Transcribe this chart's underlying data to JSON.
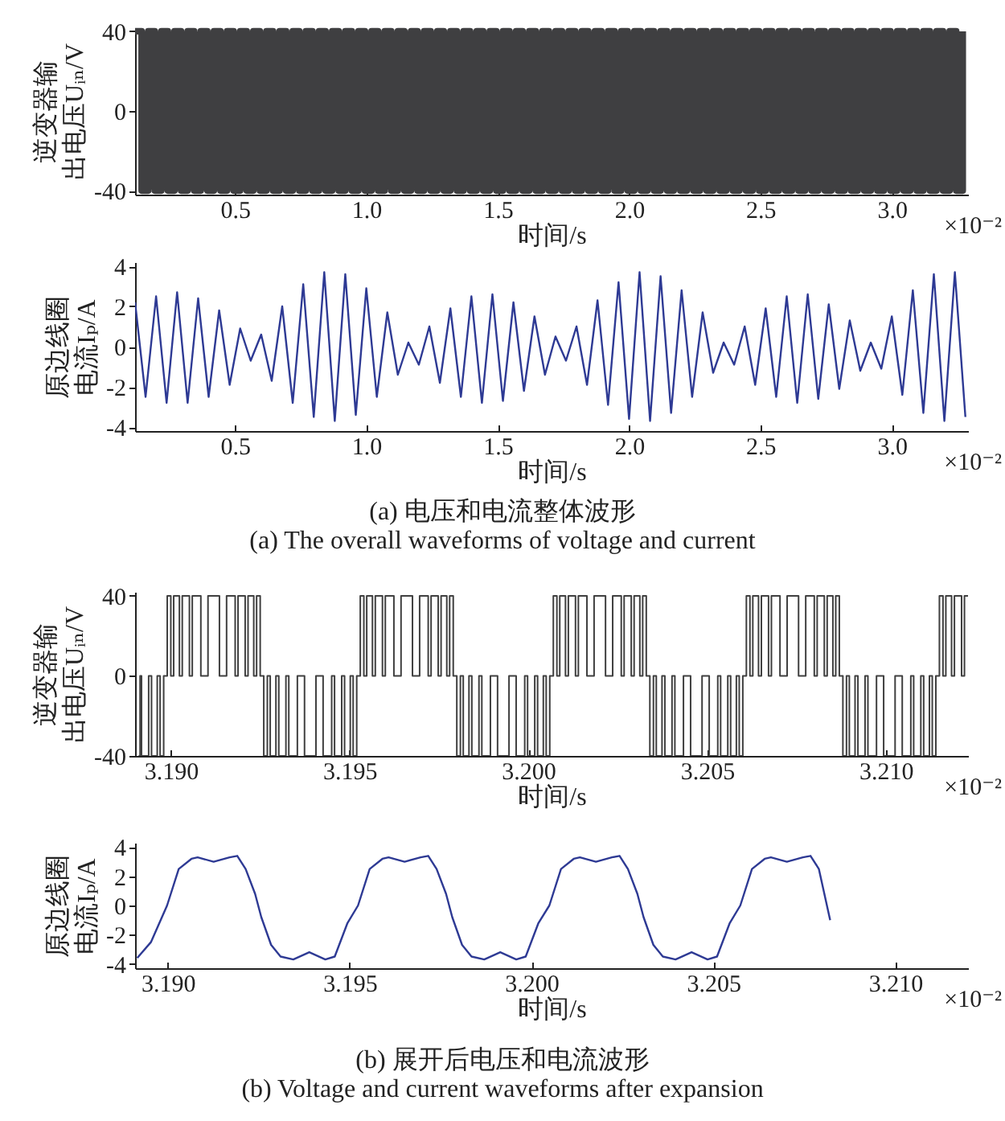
{
  "chart_data": [
    {
      "type": "step",
      "xlabel": "时间/s",
      "ylabel": "逆变器输出电压Uᵢₙ/V",
      "annotations": [
        "×10⁻²"
      ],
      "xlim": [
        0.12,
        3.29
      ],
      "ylim": [
        -42,
        42
      ],
      "xticks": [
        0.5,
        {
          "value": 1,
          "label": "1.0"
        },
        1.5,
        {
          "value": 2,
          "label": "2.0"
        },
        2.5,
        {
          "value": 3,
          "label": "3.0"
        }
      ],
      "yticks": [
        -40,
        0,
        40
      ],
      "grid": false,
      "x": [
        0.12,
        0.145,
        0.17,
        0.195,
        0.22,
        0.245,
        0.27,
        0.295,
        0.32,
        0.345,
        0.37,
        0.395,
        0.42,
        0.445,
        0.47,
        0.495,
        0.52,
        0.545,
        0.57,
        0.595,
        0.62,
        0.645,
        0.67,
        0.695,
        0.72,
        0.745,
        0.77,
        0.795,
        0.82,
        0.845,
        0.87,
        0.895,
        0.92,
        0.945,
        0.97,
        0.995,
        1.02,
        1.045,
        1.07,
        1.095,
        1.12,
        1.145,
        1.17,
        1.195,
        1.22,
        1.245,
        1.27,
        1.295,
        1.32,
        1.345,
        1.37,
        1.395,
        1.42,
        1.445,
        1.47,
        1.495,
        1.52,
        1.545,
        1.57,
        1.595,
        1.62,
        1.645,
        1.67,
        1.695,
        1.72,
        1.745,
        1.77,
        1.795,
        1.82,
        1.845,
        1.87,
        1.895,
        1.92,
        1.945,
        1.97,
        1.995,
        2.02,
        2.045,
        2.07,
        2.095,
        2.12,
        2.145,
        2.17,
        2.195,
        2.22,
        2.245,
        2.27,
        2.295,
        2.32,
        2.345,
        2.37,
        2.395,
        2.42,
        2.445,
        2.47,
        2.495,
        2.52,
        2.545,
        2.57,
        2.595,
        2.62,
        2.645,
        2.67,
        2.695,
        2.72,
        2.745,
        2.77,
        2.795,
        2.82,
        2.845,
        2.87,
        2.895,
        2.92,
        2.945,
        2.97,
        2.995,
        3.02,
        3.045,
        3.07,
        3.095,
        3.12,
        3.145,
        3.17,
        3.195,
        3.22,
        3.245,
        3.27
      ],
      "series": [
        {
          "color": "#3f3f41",
          "values": [
            40,
            -40,
            40,
            -40,
            40,
            -40,
            40,
            -40,
            40,
            -40,
            40,
            -40,
            40,
            -40,
            40,
            -40,
            40,
            -40,
            40,
            -40,
            40,
            -40,
            40,
            -40,
            40,
            -40,
            40,
            -40,
            40,
            -40,
            40,
            -40,
            40,
            -40,
            40,
            -40,
            40,
            -40,
            40,
            -40,
            40,
            -40,
            40,
            -40,
            40,
            -40,
            40,
            -40,
            40,
            -40,
            40,
            -40,
            40,
            -40,
            40,
            -40,
            40,
            -40,
            40,
            -40,
            40,
            -40,
            40,
            -40,
            40,
            -40,
            40,
            -40,
            40,
            -40,
            40,
            -40,
            40,
            -40,
            40,
            -40,
            40,
            -40,
            40,
            -40,
            40,
            -40,
            40,
            -40,
            40,
            -40,
            40,
            -40,
            40,
            -40,
            40,
            -40,
            40,
            -40,
            40,
            -40,
            40,
            -40,
            40,
            -40,
            40,
            -40,
            40,
            -40,
            40,
            -40,
            40,
            -40,
            40,
            -40,
            40,
            -40,
            40,
            -40,
            40,
            -40,
            40,
            -40,
            40,
            -40,
            40,
            -40,
            40,
            -40,
            40,
            -40,
            40
          ]
        }
      ]
    },
    {
      "type": "line",
      "xlabel": "时间/s",
      "ylabel": "原边线圈电流Iₚ/A",
      "annotations": [
        "×10⁻²",
        "(a) 电压和电流整体波形",
        "(a) The overall waveforms of voltage and current"
      ],
      "xlim": [
        0.12,
        3.29
      ],
      "ylim": [
        -4.2,
        4.2
      ],
      "xticks": [
        0.5,
        {
          "value": 1,
          "label": "1.0"
        },
        1.5,
        {
          "value": 2,
          "label": "2.0"
        },
        2.5,
        {
          "value": 3,
          "label": "3.0"
        }
      ],
      "yticks": [
        -4,
        -2,
        0,
        2,
        4
      ],
      "grid": false,
      "x": [
        0.12,
        0.16,
        0.2,
        0.24,
        0.28,
        0.32,
        0.36,
        0.4,
        0.44,
        0.48,
        0.52,
        0.56,
        0.6,
        0.64,
        0.68,
        0.72,
        0.76,
        0.8,
        0.84,
        0.88,
        0.92,
        0.96,
        1.0,
        1.04,
        1.08,
        1.12,
        1.16,
        1.2,
        1.24,
        1.28,
        1.32,
        1.36,
        1.4,
        1.44,
        1.48,
        1.52,
        1.56,
        1.6,
        1.64,
        1.68,
        1.72,
        1.76,
        1.8,
        1.84,
        1.88,
        1.92,
        1.96,
        2.0,
        2.04,
        2.08,
        2.12,
        2.16,
        2.2,
        2.24,
        2.28,
        2.32,
        2.36,
        2.4,
        2.44,
        2.48,
        2.52,
        2.56,
        2.6,
        2.64,
        2.68,
        2.72,
        2.76,
        2.8,
        2.84,
        2.88,
        2.92,
        2.96,
        3.0,
        3.04,
        3.08,
        3.12,
        3.16,
        3.2,
        3.24,
        3.28
      ],
      "series": [
        {
          "color": "#2e3a94",
          "values": [
            2.2,
            -2.5,
            2.5,
            -2.8,
            2.7,
            -2.8,
            2.4,
            -2.5,
            1.8,
            -1.9,
            0.9,
            -0.7,
            0.6,
            -1.7,
            2.0,
            -2.8,
            3.1,
            -3.5,
            3.7,
            -3.7,
            3.6,
            -3.4,
            2.9,
            -2.5,
            1.7,
            -1.4,
            0.2,
            -0.9,
            1.0,
            -1.8,
            1.9,
            -2.5,
            2.5,
            -2.8,
            2.6,
            -2.7,
            2.2,
            -2.2,
            1.5,
            -1.4,
            0.5,
            -0.7,
            1.0,
            -1.9,
            2.3,
            -2.9,
            3.2,
            -3.6,
            3.7,
            -3.7,
            3.5,
            -3.3,
            2.8,
            -2.5,
            1.7,
            -1.3,
            0.2,
            -0.9,
            1.0,
            -1.9,
            1.9,
            -2.5,
            2.5,
            -2.8,
            2.6,
            -2.6,
            2.1,
            -2.1,
            1.3,
            -1.2,
            0.2,
            -1.1,
            1.5,
            -2.4,
            2.8,
            -3.3,
            3.6,
            -3.7,
            3.7,
            -3.5
          ]
        }
      ]
    },
    {
      "type": "step",
      "xlabel": "时间/s",
      "ylabel": "逆变器输出电压Uᵢₙ/V",
      "annotations": [
        "×10⁻²"
      ],
      "xlim": [
        3.189,
        3.2123
      ],
      "ylim": [
        -40,
        42
      ],
      "xticks": [
        {
          "value": 3.19,
          "label": "3.190"
        },
        {
          "value": 3.195,
          "label": "3.195"
        },
        {
          "value": 3.2,
          "label": "3.200"
        },
        {
          "value": 3.205,
          "label": "3.205"
        },
        {
          "value": 3.21,
          "label": "3.210"
        }
      ],
      "yticks": [
        -40,
        0,
        40
      ],
      "grid": false,
      "x": [
        3.1891,
        3.18914,
        3.18918,
        3.18938,
        3.18946,
        3.18962,
        3.1897,
        3.1898,
        3.1899,
        3.19,
        3.19008,
        3.19024,
        3.19032,
        3.19052,
        3.1906,
        3.19084,
        3.19104,
        3.19136,
        3.19156,
        3.1918,
        3.19188,
        3.19208,
        3.19216,
        3.19232,
        3.1924,
        3.1925,
        3.1926,
        3.1927,
        3.19278,
        3.19294,
        3.19302,
        3.19322,
        3.1933,
        3.19354,
        3.19374,
        3.19406,
        3.19426,
        3.1945,
        3.19458,
        3.19478,
        3.19486,
        3.19502,
        3.1951,
        3.1952,
        3.1953,
        3.1954,
        3.19548,
        3.19564,
        3.19572,
        3.19592,
        3.196,
        3.19624,
        3.19644,
        3.19676,
        3.19696,
        3.1972,
        3.19728,
        3.19748,
        3.19756,
        3.19772,
        3.1978,
        3.1979,
        3.198,
        3.1981,
        3.19818,
        3.19834,
        3.19842,
        3.19862,
        3.1987,
        3.19894,
        3.19914,
        3.19946,
        3.19966,
        3.1999,
        3.19998,
        3.20018,
        3.20026,
        3.20042,
        3.2005,
        3.2006,
        3.2007,
        3.2008,
        3.20088,
        3.20104,
        3.20112,
        3.20132,
        3.2014,
        3.20164,
        3.20184,
        3.20216,
        3.20236,
        3.2026,
        3.20268,
        3.20288,
        3.20296,
        3.20312,
        3.2032,
        3.2033,
        3.2034,
        3.2035,
        3.20358,
        3.20374,
        3.20382,
        3.20402,
        3.2041,
        3.20434,
        3.20454,
        3.20486,
        3.20506,
        3.2053,
        3.20538,
        3.20558,
        3.20566,
        3.20582,
        3.2059,
        3.206,
        3.2061,
        3.2062,
        3.20628,
        3.20644,
        3.20652,
        3.20672,
        3.2068,
        3.20704,
        3.20724,
        3.20756,
        3.20776,
        3.208,
        3.20808,
        3.20828,
        3.20836,
        3.20852,
        3.2086,
        3.2087,
        3.2088,
        3.2089,
        3.20898,
        3.20914,
        3.20922,
        3.20942,
        3.2095,
        3.20974,
        3.20994,
        3.21026,
        3.21046,
        3.2107,
        3.21078,
        3.21098,
        3.21106,
        3.21122,
        3.2113,
        3.2114,
        3.2115,
        3.2116,
        3.21168,
        3.21184,
        3.21192,
        3.21212,
        3.2122,
        3.2123
      ],
      "series": [
        {
          "color": "#404040",
          "values": [
            -40,
            0,
            -40,
            0,
            -40,
            0,
            -40,
            0,
            40,
            0,
            40,
            0,
            40,
            0,
            40,
            0,
            40,
            0,
            40,
            0,
            40,
            0,
            40,
            0,
            40,
            0,
            -40,
            0,
            -40,
            0,
            -40,
            0,
            -40,
            0,
            -40,
            0,
            -40,
            0,
            -40,
            0,
            -40,
            0,
            -40,
            0,
            40,
            0,
            40,
            0,
            40,
            0,
            40,
            0,
            40,
            0,
            40,
            0,
            40,
            0,
            40,
            0,
            40,
            0,
            -40,
            0,
            -40,
            0,
            -40,
            0,
            -40,
            0,
            -40,
            0,
            -40,
            0,
            -40,
            0,
            -40,
            0,
            -40,
            0,
            40,
            0,
            40,
            0,
            40,
            0,
            40,
            0,
            40,
            0,
            40,
            0,
            40,
            0,
            40,
            0,
            40,
            0,
            -40,
            0,
            -40,
            0,
            -40,
            0,
            -40,
            0,
            -40,
            0,
            -40,
            0,
            -40,
            0,
            -40,
            0,
            -40,
            0,
            40,
            0,
            40,
            0,
            40,
            0,
            40,
            0,
            40,
            0,
            40,
            0,
            40,
            0,
            40,
            0,
            40,
            0,
            -40,
            0,
            -40,
            0,
            -40,
            0,
            -40,
            0,
            -40,
            0,
            -40,
            0,
            -40,
            0,
            -40,
            0,
            -40,
            0,
            40,
            0,
            40,
            0,
            40,
            0,
            40,
            40
          ]
        }
      ]
    },
    {
      "type": "line",
      "xlabel": "时间/s",
      "ylabel": "原边线圈电流Iₚ/A",
      "annotations": [
        "×10⁻²",
        "(b) 展开后电压和电流波形",
        "(b) Voltage and current waveforms after expansion"
      ],
      "xlim": [
        3.1891,
        3.212
      ],
      "ylim": [
        -4.3,
        4.3
      ],
      "xticks": [
        {
          "value": 3.19,
          "label": "3.190"
        },
        {
          "value": 3.195,
          "label": "3.195"
        },
        {
          "value": 3.2,
          "label": "3.200"
        },
        {
          "value": 3.205,
          "label": "3.205"
        },
        {
          "value": 3.21,
          "label": "3.210"
        }
      ],
      "yticks": [
        -4,
        -2,
        0,
        2,
        4
      ],
      "grid": false,
      "x": [
        3.18916,
        3.18954,
        3.18998,
        3.1903,
        3.19065,
        3.19082,
        3.19126,
        3.1917,
        3.19191,
        3.19214,
        3.1924,
        3.19257,
        3.19284,
        3.1931,
        3.19345,
        3.19389,
        3.19433,
        3.19459,
        3.19494,
        3.19523,
        3.19555,
        3.1959,
        3.19607,
        3.19651,
        3.19695,
        3.19716,
        3.19739,
        3.19765,
        3.19782,
        3.19809,
        3.19835,
        3.1987,
        3.19914,
        3.19958,
        3.19984,
        3.20019,
        3.20049,
        3.20081,
        3.20116,
        3.20133,
        3.20177,
        3.20221,
        3.20242,
        3.20265,
        3.20291,
        3.20308,
        3.20335,
        3.20361,
        3.20396,
        3.2044,
        3.20484,
        3.2051,
        3.20545,
        3.20574,
        3.20606,
        3.20641,
        3.20658,
        3.20702,
        3.20746,
        3.20767,
        3.2079,
        3.20821
      ],
      "series": [
        {
          "color": "#2e3a94",
          "values": [
            -3.6,
            -2.5,
            0,
            2.5,
            3.2,
            3.3,
            3.0,
            3.3,
            3.4,
            2.5,
            0.8,
            -0.8,
            -2.7,
            -3.5,
            -3.7,
            -3.2,
            -3.7,
            -3.5,
            -1.2,
            0,
            2.5,
            3.2,
            3.3,
            3.0,
            3.3,
            3.4,
            2.5,
            0.8,
            -0.8,
            -2.7,
            -3.5,
            -3.7,
            -3.2,
            -3.7,
            -3.5,
            -1.2,
            0,
            2.5,
            3.2,
            3.3,
            3.0,
            3.3,
            3.4,
            2.5,
            0.8,
            -0.8,
            -2.7,
            -3.5,
            -3.7,
            -3.2,
            -3.7,
            -3.5,
            -1.2,
            0,
            2.5,
            3.2,
            3.3,
            3.0,
            3.3,
            3.4,
            2.5,
            -1.0
          ]
        }
      ]
    }
  ]
}
